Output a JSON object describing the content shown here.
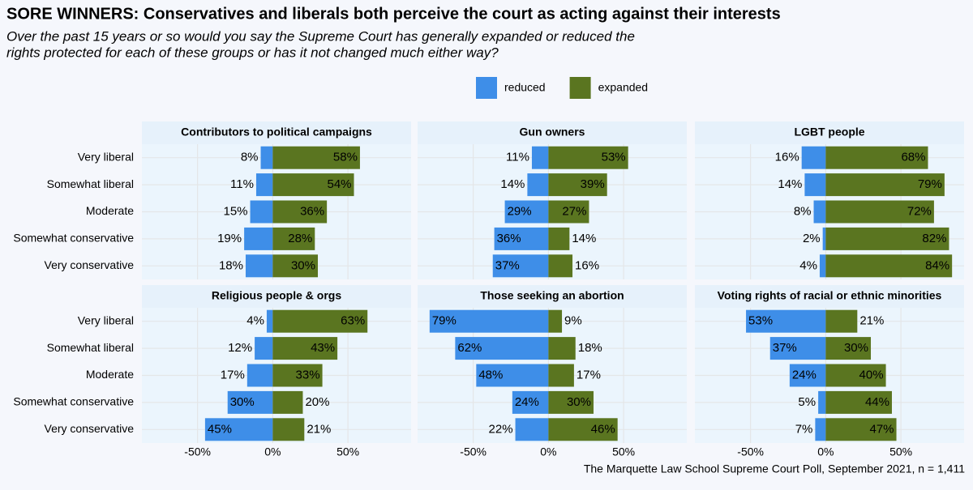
{
  "chart_data": {
    "type": "bar",
    "orientation": "horizontal",
    "title": "SORE WINNERS: Conservatives and liberals both perceive the court as acting against their interests",
    "subtitle": [
      "Over the past 15 years or so would you say the Supreme Court has generally expanded or reduced the",
      "rights protected for each of these groups or has it not changed much either way?"
    ],
    "caption": "The Marquette Law School Supreme Court Poll, September 2021, n = 1,411",
    "legend": "top",
    "grid": true,
    "categories": [
      "Very liberal",
      "Somewhat liberal",
      "Moderate",
      "Somewhat conservative",
      "Very conservative"
    ],
    "series": [
      {
        "name": "reduced",
        "color": "#3e8ee8"
      },
      {
        "name": "expanded",
        "color": "#5a7520"
      }
    ],
    "xlim": [
      -87,
      92
    ],
    "xticks": [
      {
        "value": -50,
        "label": "-50%"
      },
      {
        "value": 0,
        "label": "0%"
      },
      {
        "value": 50,
        "label": "50%"
      }
    ],
    "facets": [
      {
        "title": "Contributors to political campaigns",
        "values": [
          [
            -8,
            -11,
            -15,
            -19,
            -18
          ],
          [
            58,
            54,
            36,
            28,
            30
          ]
        ],
        "value_labels": [
          [
            "8%",
            "11%",
            "15%",
            "19%",
            "18%"
          ],
          [
            "58%",
            "54%",
            "36%",
            "28%",
            "30%"
          ]
        ]
      },
      {
        "title": "Gun owners",
        "values": [
          [
            -11,
            -14,
            -29,
            -36,
            -37
          ],
          [
            53,
            39,
            27,
            14,
            16
          ]
        ],
        "value_labels": [
          [
            "11%",
            "14%",
            "29%",
            "36%",
            "37%"
          ],
          [
            "53%",
            "39%",
            "27%",
            "14%",
            "16%"
          ]
        ]
      },
      {
        "title": "LGBT people",
        "values": [
          [
            -16,
            -14,
            -8,
            -2,
            -4
          ],
          [
            68,
            79,
            72,
            82,
            84
          ]
        ],
        "value_labels": [
          [
            "16%",
            "14%",
            "8%",
            "2%",
            "4%"
          ],
          [
            "68%",
            "79%",
            "72%",
            "82%",
            "84%"
          ]
        ]
      },
      {
        "title": "Religious people & orgs",
        "values": [
          [
            -4,
            -12,
            -17,
            -30,
            -45
          ],
          [
            63,
            43,
            33,
            20,
            21
          ]
        ],
        "value_labels": [
          [
            "4%",
            "12%",
            "17%",
            "30%",
            "45%"
          ],
          [
            "63%",
            "43%",
            "33%",
            "20%",
            "21%"
          ]
        ]
      },
      {
        "title": "Those seeking an abortion",
        "values": [
          [
            -79,
            -62,
            -48,
            -24,
            -22
          ],
          [
            9,
            18,
            17,
            30,
            46
          ]
        ],
        "value_labels": [
          [
            "79%",
            "62%",
            "48%",
            "24%",
            "22%"
          ],
          [
            "9%",
            "18%",
            "17%",
            "30%",
            "46%"
          ]
        ]
      },
      {
        "title": "Voting rights of racial or ethnic minorities",
        "values": [
          [
            -53,
            -37,
            -24,
            -5,
            -7
          ],
          [
            21,
            30,
            40,
            44,
            47
          ]
        ],
        "value_labels": [
          [
            "53%",
            "37%",
            "24%",
            "5%",
            "7%"
          ],
          [
            "21%",
            "30%",
            "40%",
            "44%",
            "47%"
          ]
        ]
      }
    ]
  }
}
